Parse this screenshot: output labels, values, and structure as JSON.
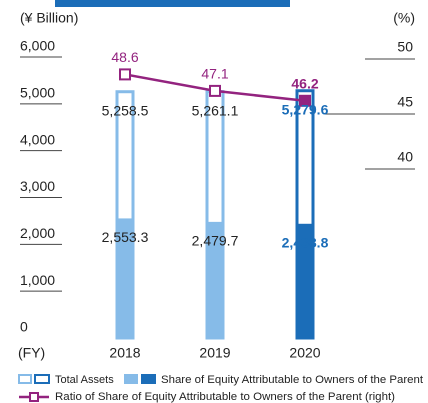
{
  "chart_data": {
    "type": "bar-line",
    "y_label": "(¥ Billion)",
    "y2_label": "(%)",
    "x_label": "(FY)",
    "categories": [
      "2018",
      "2019",
      "2020"
    ],
    "ylim": [
      0,
      6000
    ],
    "yticks": [
      0,
      {
        "value": 1000,
        "label": "1,000"
      },
      {
        "value": 2000,
        "label": "2,000"
      },
      {
        "value": 3000,
        "label": "3,000"
      },
      {
        "value": 4000,
        "label": "4,000"
      },
      {
        "value": 5000,
        "label": "5,000"
      },
      {
        "value": 6000,
        "label": "6,000"
      }
    ],
    "y2lim": [
      40,
      50
    ],
    "y2ticks": [
      40,
      45,
      50
    ],
    "series": [
      {
        "name": "Total Assets",
        "style": "outline",
        "color": "#86bbe8",
        "highlight_color": "#1b6db8",
        "values": [
          5258.5,
          5261.1,
          5279.6
        ],
        "value_labels": [
          "5,258.5",
          "5,261.1",
          "5,279.6"
        ]
      },
      {
        "name": "Share of Equity Attributable to Owners of the Parent",
        "style": "filled",
        "color": "#86bbe8",
        "highlight_color": "#1b6db8",
        "values": [
          2553.3,
          2479.7,
          2438.8
        ],
        "value_labels": [
          "2,553.3",
          "2,479.7",
          "2,438.8"
        ]
      },
      {
        "name": "Ratio of Share of Equity Attributable to Owners of the Parent (right)",
        "style": "line",
        "axis": "y2",
        "color": "#93237f",
        "values": [
          48.6,
          47.1,
          46.2
        ]
      }
    ],
    "highlight_index": 2
  }
}
